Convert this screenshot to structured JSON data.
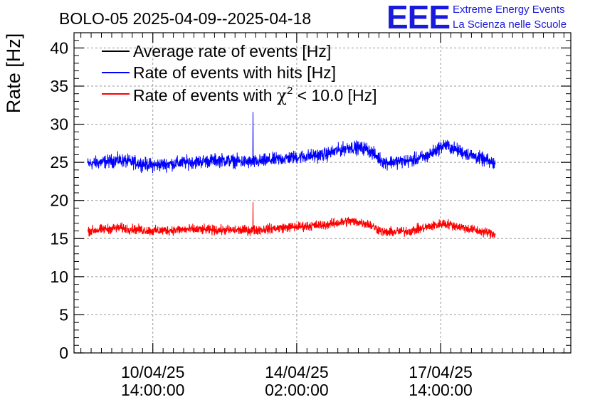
{
  "header": {
    "title": "BOLO-05 2025-04-09--2025-04-18",
    "logo_text": "EEE",
    "logo_line1": "Extreme Energy Events",
    "logo_line2": "La Scienza nelle Scuole"
  },
  "colors": {
    "average": "#000000",
    "hits": "#0000ff",
    "chi2": "#ff0000",
    "logo": "#1a1adc"
  },
  "chart_data": {
    "type": "line",
    "title": "BOLO-05 2025-04-09--2025-04-18",
    "ylabel": "Rate [Hz]",
    "xlabel": "",
    "ylim": [
      0,
      42
    ],
    "xlim_hours": [
      -46,
      244
    ],
    "x_unit": "hours since 2025-04-10 14:00:00",
    "yticks": [
      0,
      5,
      10,
      15,
      20,
      25,
      30,
      35,
      40
    ],
    "yticks_labels": [
      "0",
      "5",
      "10",
      "15",
      "20",
      "25",
      "30",
      "35",
      "40"
    ],
    "xticks": [
      {
        "hours": 0,
        "date": "10/04/25",
        "time": "14:00:00"
      },
      {
        "hours": 84,
        "date": "14/04/25",
        "time": "02:00:00"
      },
      {
        "hours": 168,
        "date": "17/04/25",
        "time": "14:00:00"
      }
    ],
    "data_range_hours": [
      -38,
      200
    ],
    "grid": true,
    "legend_position": "top-left",
    "series": [
      {
        "name": "Average rate of events [Hz]",
        "key": "average",
        "noise": 0,
        "values": []
      },
      {
        "name": "Rate of events with hits [Hz]",
        "key": "hits",
        "noise": 1.3,
        "baseline_x": [
          -38,
          -20,
          0,
          20,
          40,
          58,
          80,
          100,
          115,
          125,
          135,
          150,
          160,
          170,
          180,
          190,
          200
        ],
        "baseline_y": [
          24.8,
          25.3,
          24.6,
          25.0,
          25.3,
          25.0,
          25.6,
          26.0,
          27.0,
          26.8,
          25.0,
          25.2,
          25.8,
          27.3,
          26.4,
          25.6,
          24.8
        ],
        "spike": {
          "x": 58.5,
          "y": 31.6
        }
      },
      {
        "name": "Rate of events with χ² < 10.0 [Hz]",
        "key": "chi2",
        "noise": 0.95,
        "baseline_x": [
          -38,
          -20,
          0,
          20,
          40,
          58,
          80,
          100,
          115,
          125,
          135,
          150,
          160,
          170,
          180,
          190,
          200
        ],
        "baseline_y": [
          16.0,
          16.4,
          16.0,
          16.2,
          16.1,
          16.1,
          16.5,
          16.8,
          17.3,
          17.0,
          15.8,
          16.0,
          16.5,
          17.0,
          16.5,
          16.0,
          15.6
        ],
        "spike": {
          "x": 58.5,
          "y": 19.8
        }
      }
    ],
    "legend": [
      {
        "label_prefix": "Rate of events with ",
        "symbol": "χ",
        "superscript": "2",
        "label_suffix": " < 10.0 [Hz]"
      }
    ]
  },
  "legend": {
    "entries": [
      "Average rate of events [Hz]",
      "Rate of events with hits [Hz]"
    ],
    "chi_prefix": "Rate of events with ",
    "chi_symbol": "χ",
    "chi_sup": "2",
    "chi_suffix": " < 10.0 [Hz]"
  }
}
